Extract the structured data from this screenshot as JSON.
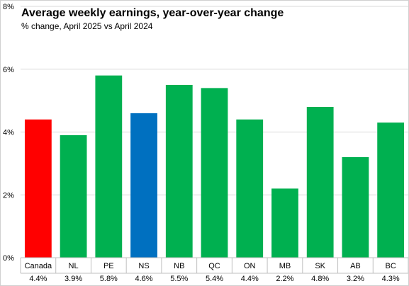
{
  "chart_data": {
    "type": "bar",
    "title": "Average weekly earnings, year-over-year change",
    "subtitle": "% change, April 2025 vs April 2024",
    "xlabel": "",
    "ylabel": "",
    "ylim": [
      0,
      8
    ],
    "yticks": [
      0,
      2,
      4,
      6,
      8
    ],
    "ytick_labels": [
      "0%",
      "2%",
      "4%",
      "6%",
      "8%"
    ],
    "grid": true,
    "legend": "none",
    "categories": [
      "Canada",
      "NL",
      "PE",
      "NS",
      "NB",
      "QC",
      "ON",
      "MB",
      "SK",
      "AB",
      "BC"
    ],
    "values": [
      4.4,
      3.9,
      5.8,
      4.6,
      5.5,
      5.4,
      4.4,
      2.2,
      4.8,
      3.2,
      4.3
    ],
    "value_labels": [
      "4.4%",
      "3.9%",
      "5.8%",
      "4.6%",
      "5.5%",
      "5.4%",
      "4.4%",
      "2.2%",
      "4.8%",
      "3.2%",
      "4.3%"
    ],
    "colors": {
      "Canada": "#ff0000",
      "NS": "#0070c0",
      "default": "#00b050"
    },
    "gridline_color": "#d9d9d9",
    "axis_color": "#bfbfbf"
  }
}
